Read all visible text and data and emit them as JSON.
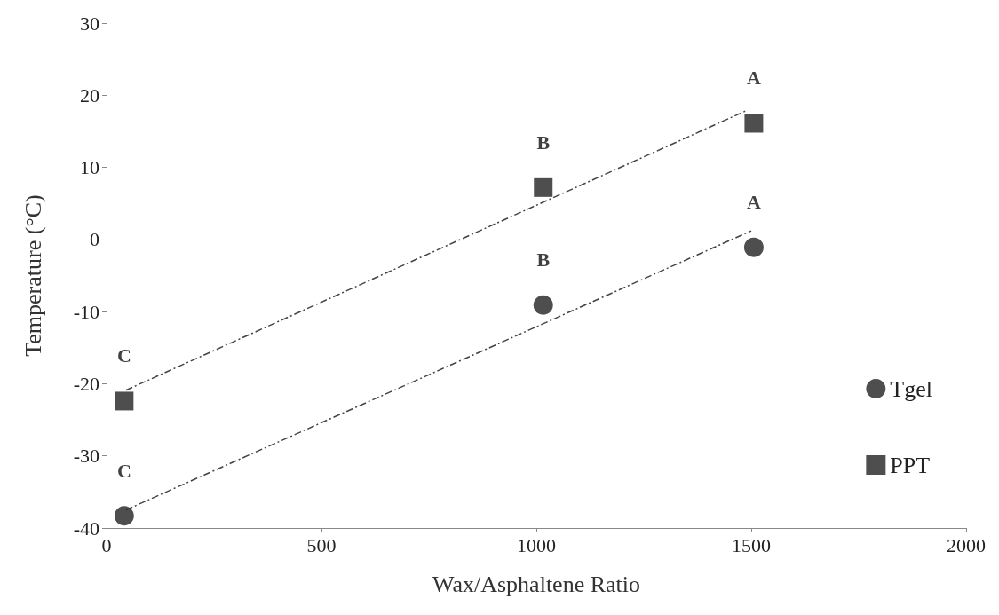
{
  "chart_data": {
    "type": "scatter",
    "xlabel": "Wax/Asphaltene Ratio",
    "ylabel": "Temperature (°C)",
    "xlim": [
      0,
      2000
    ],
    "xticks": [
      0,
      500,
      1000,
      1500,
      2000
    ],
    "ylim": [
      -40,
      30
    ],
    "yticks": [
      -40,
      -30,
      -20,
      -10,
      0,
      10,
      20,
      30
    ],
    "grid": false,
    "legend": "right",
    "series": [
      {
        "name": "Tgel",
        "color": "#222222",
        "marker": "circle",
        "x": [
          41,
          1016,
          1506
        ],
        "values": [
          -38.3,
          -9.1,
          -1.1
        ]
      },
      {
        "name": "PPT",
        "color": "#222222",
        "marker": "square",
        "x": [
          41,
          1016,
          1506
        ],
        "values": [
          -22.4,
          7.2,
          16.1
        ]
      },
      {
        "type": "line",
        "color": "#444444",
        "marker": "none",
        "line_style": "dashed",
        "x": [
          45,
          1490
        ],
        "values": [
          -20.9,
          17.9
        ]
      },
      {
        "type": "line",
        "color": "#444444",
        "marker": "none",
        "line_style": "dashed",
        "x": [
          45,
          1500
        ],
        "values": [
          -37.5,
          1.2
        ]
      }
    ],
    "annotations": [
      {
        "text": "A",
        "x": 1506,
        "y": 16.1
      },
      {
        "text": "A",
        "x": 1506,
        "y": -1.1
      },
      {
        "text": "B",
        "x": 1016,
        "y": 7.2
      },
      {
        "text": "B",
        "x": 1016,
        "y": -9.1
      },
      {
        "text": "C",
        "x": 41,
        "y": -22.4
      },
      {
        "text": "C",
        "x": 41,
        "y": -38.3
      }
    ]
  }
}
